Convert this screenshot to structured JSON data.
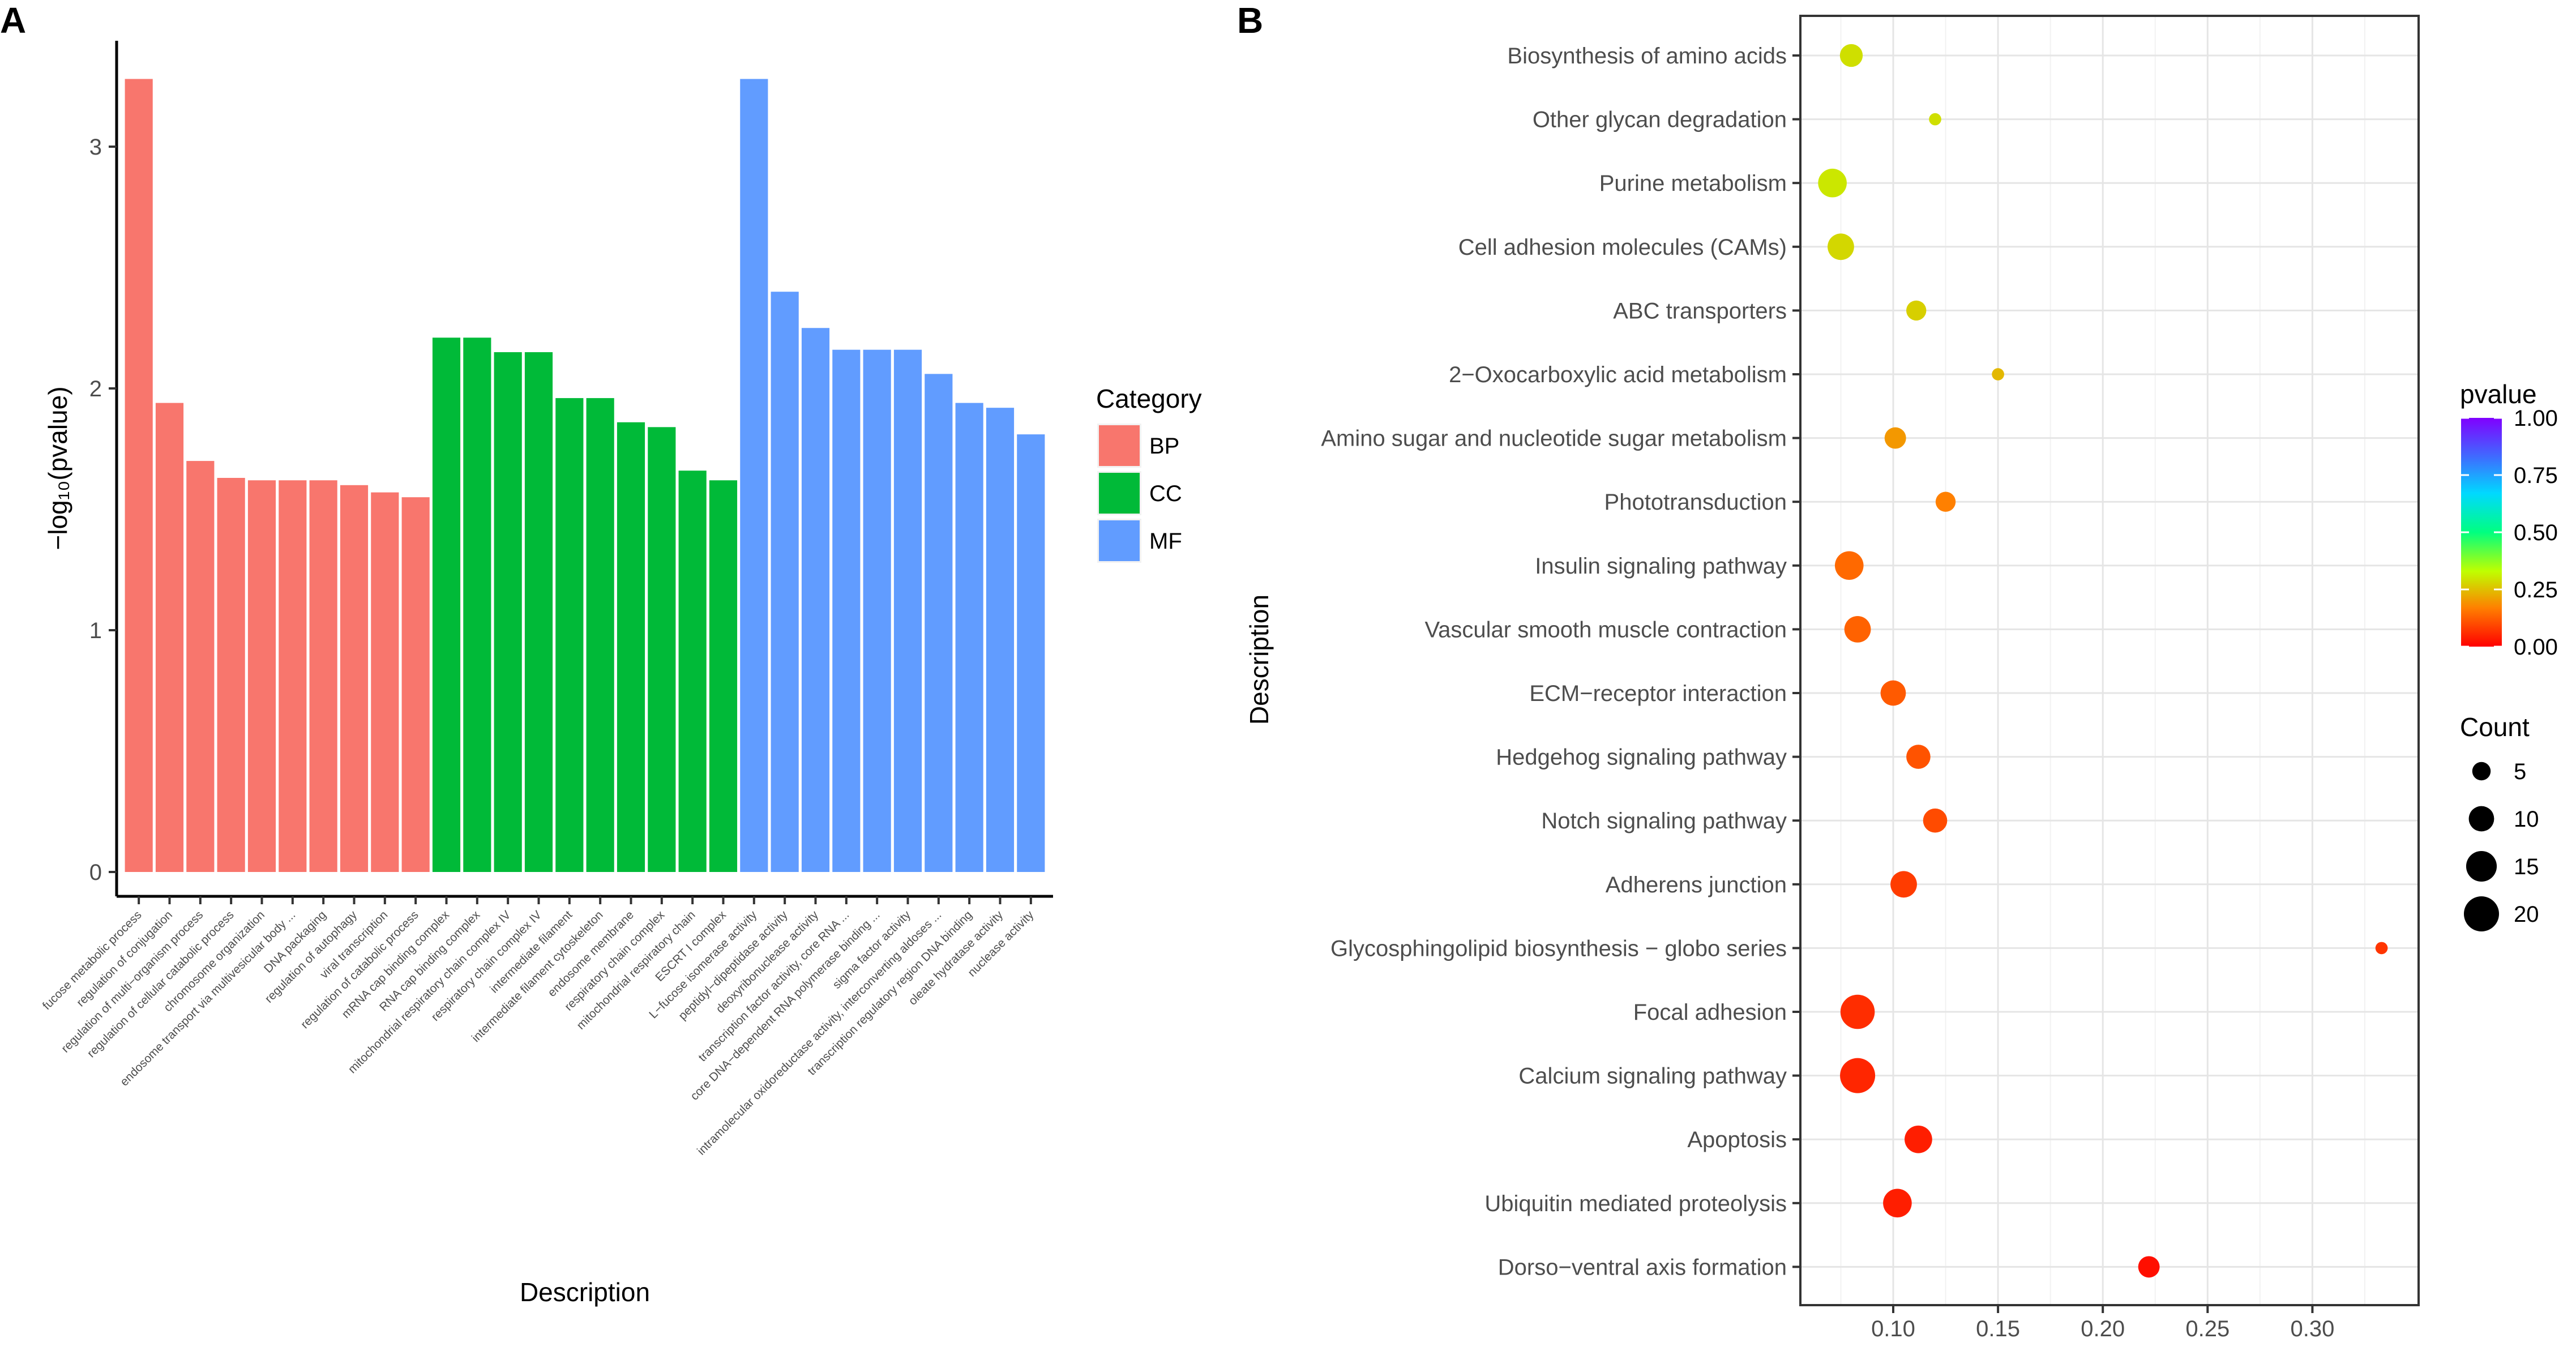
{
  "panel_a_label": "A",
  "panel_b_label": "B",
  "chart_data": [
    {
      "type": "bar",
      "panel": "A",
      "xlabel": "Description",
      "ylabel": "−log₁₀(pvalue)",
      "ylim": [
        0,
        3.35
      ],
      "yticks": [
        0,
        1,
        2,
        3
      ],
      "legend_title": "Category",
      "legend_position": "right",
      "categories": [
        "fucose metabolic process",
        "regulation of conjugation",
        "regulation of multi−organism process",
        "regulation of cellular catabolic process",
        "chromosome organization",
        "endosome transport via multivesicular body ...",
        "DNA packaging",
        "regulation of autophagy",
        "viral transcription",
        "regulation of catabolic process",
        "mRNA cap binding complex",
        "RNA cap binding complex",
        "mitochondrial respiratory chain complex IV",
        "respiratory chain complex IV",
        "intermediate filament",
        "intermediate filament cytoskeleton",
        "endosome membrane",
        "respiratory chain complex",
        "mitochondrial respiratory chain",
        "ESCRT I complex",
        "L−fucose isomerase activity",
        "peptidyl−dipeptidase activity",
        "deoxyribonuclease activity",
        "transcription factor activity, core RNA ...",
        "core DNA−dependent RNA polymerase binding ...",
        "sigma factor activity",
        "intramolecular oxidoreductase activity, interconverting aldoses ...",
        "transcription regulatory region DNA binding",
        "oleate hydratase activity",
        "nuclease activity"
      ],
      "values": [
        3.28,
        1.94,
        1.7,
        1.63,
        1.62,
        1.62,
        1.62,
        1.6,
        1.57,
        1.55,
        2.21,
        2.21,
        2.15,
        2.15,
        1.96,
        1.96,
        1.86,
        1.84,
        1.66,
        1.62,
        3.28,
        2.4,
        2.25,
        2.16,
        2.16,
        2.16,
        2.06,
        1.94,
        1.92,
        1.81
      ],
      "groups": [
        "BP",
        "BP",
        "BP",
        "BP",
        "BP",
        "BP",
        "BP",
        "BP",
        "BP",
        "BP",
        "CC",
        "CC",
        "CC",
        "CC",
        "CC",
        "CC",
        "CC",
        "CC",
        "CC",
        "CC",
        "MF",
        "MF",
        "MF",
        "MF",
        "MF",
        "MF",
        "MF",
        "MF",
        "MF",
        "MF"
      ],
      "legend": [
        {
          "name": "BP",
          "color": "#F8766D"
        },
        {
          "name": "CC",
          "color": "#00BA38"
        },
        {
          "name": "MF",
          "color": "#619CFF"
        }
      ]
    },
    {
      "type": "scatter",
      "panel": "B",
      "xlabel": "",
      "ylabel": "Description",
      "xlim": [
        0.05,
        0.345
      ],
      "xticks": [
        0.1,
        0.15,
        0.2,
        0.25,
        0.3
      ],
      "xtick_labels": [
        "0.10",
        "0.15",
        "0.20",
        "0.25",
        "0.30"
      ],
      "grid": true,
      "categories": [
        "Biosynthesis of amino acids",
        "Other glycan degradation",
        "Purine metabolism",
        "Cell adhesion molecules (CAMs)",
        "ABC transporters",
        "2−Oxocarboxylic acid metabolism",
        "Amino sugar and nucleotide sugar metabolism",
        "Phototransduction",
        "Insulin signaling pathway",
        "Vascular smooth muscle contraction",
        "ECM−receptor interaction",
        "Hedgehog signaling pathway",
        "Notch signaling pathway",
        "Adherens junction",
        "Glycosphingolipid biosynthesis − globo series",
        "Focal adhesion",
        "Calcium signaling pathway",
        "Apoptosis",
        "Ubiquitin mediated proteolysis",
        "Dorso−ventral axis formation"
      ],
      "x": [
        0.08,
        0.12,
        0.071,
        0.075,
        0.111,
        0.15,
        0.101,
        0.125,
        0.079,
        0.083,
        0.1,
        0.112,
        0.12,
        0.105,
        0.333,
        0.083,
        0.083,
        0.112,
        0.102,
        0.222
      ],
      "count": [
        8,
        2,
        13,
        11,
        6,
        2,
        7,
        6,
        13,
        11,
        10,
        9,
        9,
        11,
        2,
        19,
        20,
        12,
        13,
        7
      ],
      "pvalue": [
        0.29,
        0.29,
        0.3,
        0.28,
        0.27,
        0.24,
        0.2,
        0.17,
        0.14,
        0.13,
        0.12,
        0.11,
        0.1,
        0.08,
        0.07,
        0.06,
        0.05,
        0.04,
        0.04,
        0.02
      ],
      "color_legend": {
        "title": "pvalue",
        "ticks": [
          1.0,
          0.75,
          0.5,
          0.25,
          0.0
        ],
        "tick_labels": [
          "1.00",
          "0.75",
          "0.50",
          "0.25",
          "0.00"
        ]
      },
      "size_legend": {
        "title": "Count",
        "values": [
          5,
          10,
          15,
          20
        ],
        "labels": [
          "5",
          "10",
          "15",
          "20"
        ]
      }
    }
  ]
}
